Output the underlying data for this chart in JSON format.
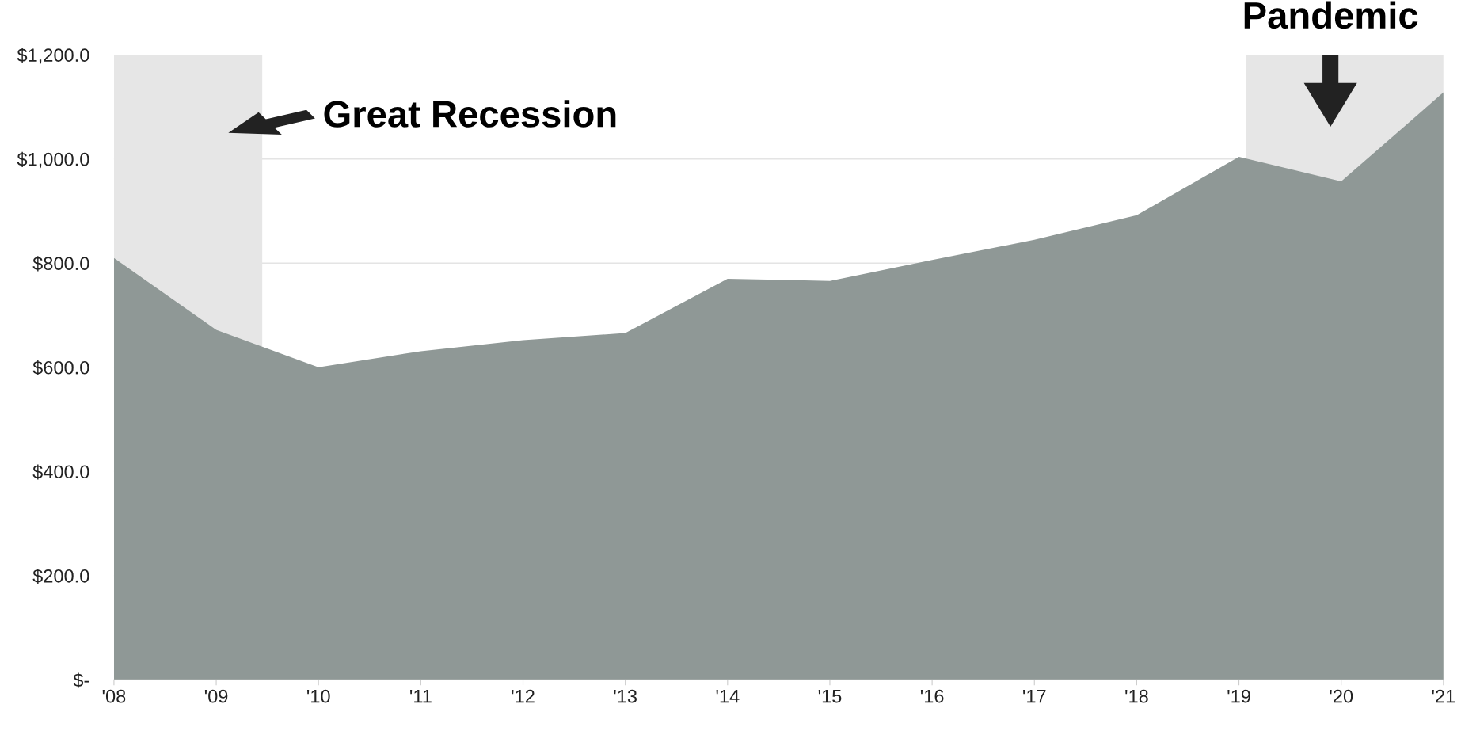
{
  "chart_data": {
    "type": "area",
    "x": [
      2008,
      2009,
      2010,
      2011,
      2012,
      2013,
      2014,
      2015,
      2016,
      2017,
      2018,
      2019,
      2020,
      2021
    ],
    "values": [
      810,
      672,
      600,
      631,
      652,
      666,
      770,
      766,
      806,
      845,
      892,
      1004,
      957,
      1128
    ],
    "color": "#8f9896",
    "xlim": [
      2008,
      2021
    ],
    "xticks": [
      {
        "value": 2008,
        "label": "'08"
      },
      {
        "value": 2009,
        "label": "'09"
      },
      {
        "value": 2010,
        "label": "'10"
      },
      {
        "value": 2011,
        "label": "'11"
      },
      {
        "value": 2012,
        "label": "'12"
      },
      {
        "value": 2013,
        "label": "'13"
      },
      {
        "value": 2014,
        "label": "'14"
      },
      {
        "value": 2015,
        "label": "'15"
      },
      {
        "value": 2016,
        "label": "'16"
      },
      {
        "value": 2017,
        "label": "'17"
      },
      {
        "value": 2018,
        "label": "'18"
      },
      {
        "value": 2019,
        "label": "'19"
      },
      {
        "value": 2020,
        "label": "'20"
      },
      {
        "value": 2021,
        "label": "'21"
      }
    ],
    "ylim": [
      0,
      1200
    ],
    "yticks": [
      {
        "value": 0,
        "label": "$-"
      },
      {
        "value": 200,
        "label": "$200.0"
      },
      {
        "value": 400,
        "label": "$400.0"
      },
      {
        "value": 600,
        "label": "$600.0"
      },
      {
        "value": 800,
        "label": "$800.0"
      },
      {
        "value": 1000,
        "label": "$1,000.0"
      },
      {
        "value": 1200,
        "label": "$1,200.0"
      }
    ],
    "grid": "y",
    "bands": [
      {
        "axis": "x",
        "from": 2008,
        "to": 2009.45,
        "color": "#e6e6e6"
      },
      {
        "axis": "x",
        "from": 2019.07,
        "to": 2021,
        "color": "#e6e6e6"
      }
    ],
    "annotations": [
      "Great Recession",
      "Pandemic"
    ]
  }
}
